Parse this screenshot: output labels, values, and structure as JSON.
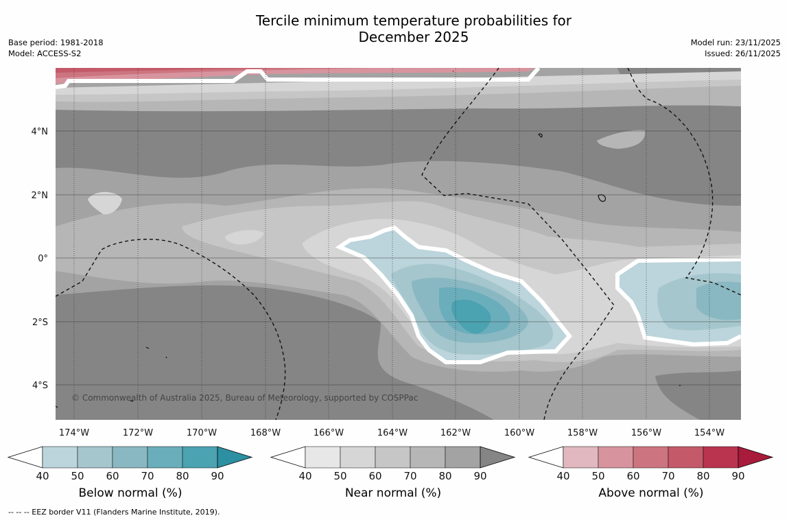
{
  "title_line1": "Tercile minimum temperature probabilities for",
  "title_line2": "December 2025",
  "base_period": "Base period: 1981-2018",
  "model": "Model: ACCESS-S2",
  "model_run": "Model run: 23/11/2025",
  "issued": "Issued: 26/11/2025",
  "attribution": "© Commonwealth of Australia 2025, Bureau of Meteorology, supported by COSPPac",
  "footnote": "--  --  -- EEZ border V11 (Flanders Marine Institute, 2019).",
  "lon_labels": [
    "174°W",
    "172°W",
    "170°W",
    "168°W",
    "166°W",
    "164°W",
    "162°W",
    "160°W",
    "158°W",
    "156°W",
    "154°W"
  ],
  "lat_labels": [
    "4°N",
    "2°N",
    "0°",
    "2°S",
    "4°S"
  ],
  "colorbars": [
    {
      "label": "Below normal (%)",
      "ticks": [
        "40",
        "50",
        "60",
        "70",
        "80",
        "90"
      ],
      "colors": [
        "#ffffff",
        "#bcd4db",
        "#a5c6cd",
        "#8ab8c2",
        "#6baebb",
        "#4ba2b1",
        "#2d8fa2"
      ]
    },
    {
      "label": "Near normal (%)",
      "ticks": [
        "40",
        "50",
        "60",
        "70",
        "80",
        "90"
      ],
      "colors": [
        "#ffffff",
        "#e7e7e7",
        "#d6d6d6",
        "#c6c6c6",
        "#b6b6b6",
        "#a3a3a3",
        "#858585"
      ]
    },
    {
      "label": "Above normal (%)",
      "ticks": [
        "40",
        "50",
        "60",
        "70",
        "80",
        "90"
      ],
      "colors": [
        "#ffffff",
        "#e1b8bf",
        "#d8949e",
        "#cc7580",
        "#c45a69",
        "#ba3450",
        "#a91b3a"
      ]
    }
  ],
  "colors": {
    "near_50": "#d6d6d6",
    "near_60": "#c6c6c6",
    "near_70": "#b6b6b6",
    "near_80": "#a3a3a3",
    "near_90": "#858585",
    "below_50": "#bcd4db",
    "below_60": "#a5c6cd",
    "below_70": "#8ab8c2",
    "below_80": "#6baebb",
    "below_90": "#4ba2b1",
    "above_50": "#d8949e",
    "above_60": "#cc7580",
    "above_70": "#c45a69",
    "above_80": "#ba3450"
  }
}
